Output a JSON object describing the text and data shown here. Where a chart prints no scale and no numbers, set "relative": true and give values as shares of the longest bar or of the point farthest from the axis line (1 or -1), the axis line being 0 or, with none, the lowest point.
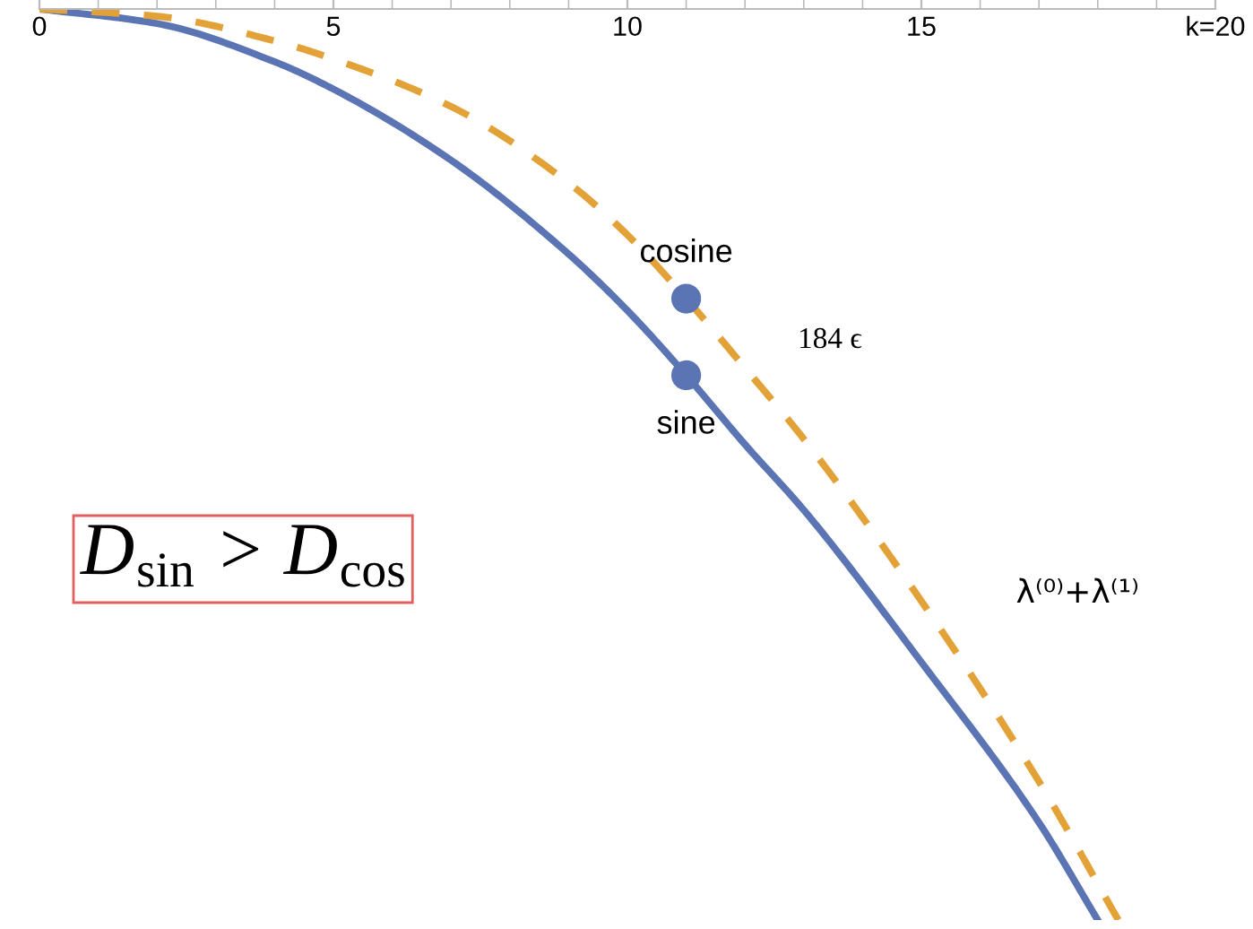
{
  "chart_data": {
    "type": "line",
    "relative": true,
    "x": [
      0,
      2,
      4,
      5,
      7,
      9,
      10,
      11,
      12,
      13,
      15,
      17,
      18
    ],
    "xlim": [
      0,
      20
    ],
    "xticks": [
      0,
      5,
      10,
      15,
      {
        "value": 20,
        "label": "k=20"
      }
    ],
    "series": [
      {
        "color": "#5b74b4",
        "line_style": "solid",
        "values": [
          0,
          -0.016,
          -0.058,
          -0.088,
          -0.166,
          -0.269,
          -0.331,
          -0.402,
          -0.478,
          -0.55,
          -0.717,
          -0.893,
          -1.0
        ]
      },
      {
        "name": "λ⁽⁰⁾+λ⁽¹⁾",
        "color": "#e3a238",
        "line_style": "dashed",
        "x": [
          0,
          2,
          4,
          5,
          7,
          9,
          10,
          11,
          12,
          13,
          15,
          17,
          18.35
        ],
        "values": [
          0,
          -0.008,
          -0.035,
          -0.055,
          -0.107,
          -0.191,
          -0.248,
          -0.318,
          -0.394,
          -0.472,
          -0.65,
          -0.848,
          -1.0
        ]
      },
      {
        "type": "scatter",
        "name": "cosine",
        "color": "#5b74b4",
        "marker": "circle",
        "x": [
          11
        ],
        "values": [
          -0.318
        ]
      },
      {
        "type": "scatter",
        "name": "sine",
        "color": "#5b74b4",
        "marker": "circle",
        "x": [
          11
        ],
        "values": [
          -0.402
        ]
      }
    ],
    "annotations": [
      "184 ϵ",
      "D$_{sin}$ > D$_{cos}$"
    ],
    "grid": false,
    "legend": false
  }
}
